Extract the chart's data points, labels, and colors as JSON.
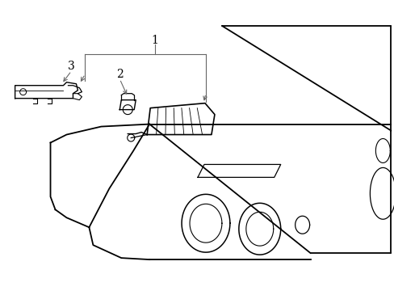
{
  "title": "",
  "background_color": "#ffffff",
  "line_color": "#000000",
  "label_color": "#000000",
  "leader_line_color": "#666666",
  "figsize": [
    4.89,
    3.6
  ],
  "dpi": 100
}
